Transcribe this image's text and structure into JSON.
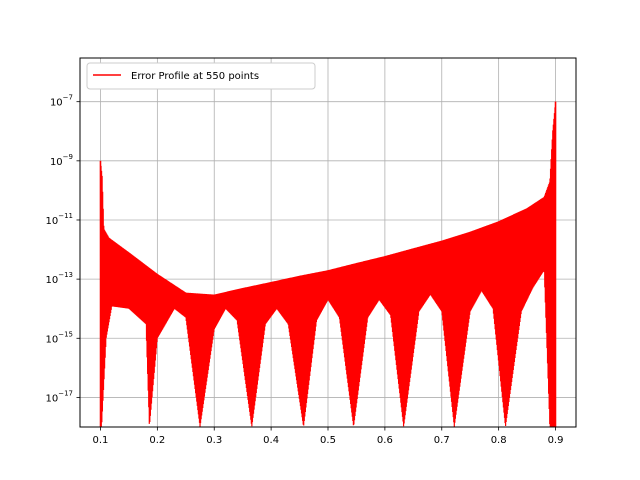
{
  "chart_data": {
    "type": "line",
    "title": "",
    "xlabel": "",
    "ylabel": "",
    "xscale": "linear",
    "yscale": "log",
    "xlim": [
      0.064,
      0.936
    ],
    "ylim": [
      1e-18,
      3e-06
    ],
    "grid": true,
    "legend_placement": "top-left",
    "x_ticks": [
      0.1,
      0.2,
      0.3,
      0.4,
      0.5,
      0.6,
      0.7,
      0.8,
      0.9
    ],
    "x_tick_labels": [
      "0.1",
      "0.2",
      "0.3",
      "0.4",
      "0.5",
      "0.6",
      "0.7",
      "0.8",
      "0.9"
    ],
    "y_tick_exponents": [
      -17,
      -15,
      -13,
      -11,
      -9,
      -7
    ],
    "y_tick_labels": [
      "10",
      "10",
      "10",
      "10",
      "10",
      "10"
    ],
    "y_tick_superscripts": [
      "−17",
      "−15",
      "−13",
      "−11",
      "−9",
      "−7"
    ],
    "series": [
      {
        "name": "Error Profile at 550 points",
        "color": "#ff0000",
        "n_points": 550,
        "envelope_upper": [
          [
            0.1,
            1e-09
          ],
          [
            0.103,
            3e-10
          ],
          [
            0.106,
            5e-12
          ],
          [
            0.115,
            2.5e-12
          ],
          [
            0.15,
            8e-13
          ],
          [
            0.2,
            1.5e-13
          ],
          [
            0.25,
            3.5e-14
          ],
          [
            0.3,
            3e-14
          ],
          [
            0.35,
            5e-14
          ],
          [
            0.4,
            8e-14
          ],
          [
            0.45,
            1.3e-13
          ],
          [
            0.5,
            2e-13
          ],
          [
            0.55,
            3.5e-13
          ],
          [
            0.6,
            6e-13
          ],
          [
            0.65,
            1.1e-12
          ],
          [
            0.7,
            2e-12
          ],
          [
            0.75,
            4e-12
          ],
          [
            0.8,
            9e-12
          ],
          [
            0.85,
            2.5e-11
          ],
          [
            0.88,
            6e-11
          ],
          [
            0.89,
            2e-10
          ],
          [
            0.895,
            1e-08
          ],
          [
            0.9,
            1e-07
          ]
        ],
        "envelope_lower": [
          [
            0.102,
            1e-18
          ],
          [
            0.11,
            1e-15
          ],
          [
            0.12,
            1.2e-14
          ],
          [
            0.15,
            1e-14
          ],
          [
            0.18,
            3e-15
          ],
          [
            0.186,
            1e-18
          ],
          [
            0.2,
            1e-15
          ],
          [
            0.23,
            1e-14
          ],
          [
            0.25,
            5e-15
          ],
          [
            0.275,
            1e-18
          ],
          [
            0.3,
            2e-15
          ],
          [
            0.32,
            1e-14
          ],
          [
            0.34,
            4e-15
          ],
          [
            0.366,
            1e-18
          ],
          [
            0.39,
            3e-15
          ],
          [
            0.41,
            1e-14
          ],
          [
            0.43,
            3e-15
          ],
          [
            0.457,
            1e-18
          ],
          [
            0.48,
            4e-15
          ],
          [
            0.5,
            2e-14
          ],
          [
            0.52,
            5e-15
          ],
          [
            0.545,
            1e-18
          ],
          [
            0.57,
            5e-15
          ],
          [
            0.59,
            2e-14
          ],
          [
            0.61,
            6e-15
          ],
          [
            0.633,
            1e-18
          ],
          [
            0.66,
            8e-15
          ],
          [
            0.68,
            3e-14
          ],
          [
            0.7,
            8e-15
          ],
          [
            0.722,
            1e-18
          ],
          [
            0.75,
            8e-15
          ],
          [
            0.77,
            4e-14
          ],
          [
            0.79,
            1e-14
          ],
          [
            0.812,
            1e-18
          ],
          [
            0.84,
            8e-15
          ],
          [
            0.86,
            5e-14
          ],
          [
            0.88,
            2e-13
          ],
          [
            0.89,
            1e-18
          ],
          [
            0.9,
            1e-18
          ]
        ]
      }
    ]
  }
}
